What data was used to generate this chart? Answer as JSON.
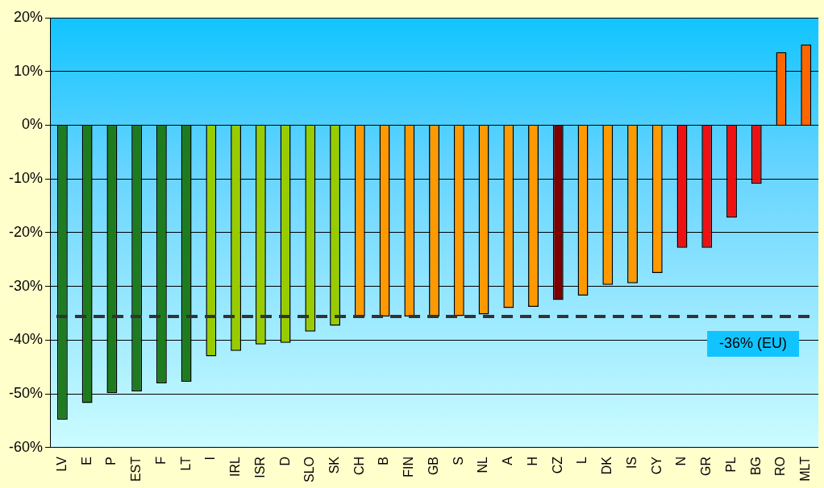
{
  "chart_data": {
    "type": "bar",
    "categories": [
      "LV",
      "E",
      "P",
      "EST",
      "F",
      "LT",
      "I",
      "IRL",
      "ISR",
      "D",
      "SLO",
      "SK",
      "CH",
      "B",
      "FIN",
      "GB",
      "S",
      "NL",
      "A",
      "H",
      "CZ",
      "L",
      "DK",
      "IS",
      "CY",
      "N",
      "GR",
      "PL",
      "BG",
      "RO",
      "MLT"
    ],
    "values": [
      -54.8,
      -51.7,
      -49.8,
      -49.5,
      -48,
      -47.7,
      -43,
      -42,
      -40.8,
      -40.5,
      -38.4,
      -37.3,
      -35.6,
      -35.6,
      -35.6,
      -35.6,
      -35.5,
      -35.2,
      -34,
      -33.8,
      -32.5,
      -31.7,
      -29.7,
      -29.4,
      -27.5,
      -22.8,
      -22.8,
      -17.2,
      -10.9,
      13.6,
      15
    ],
    "colors": [
      "#1e7b1e",
      "#1e7b1e",
      "#1e7b1e",
      "#1e7b1e",
      "#1e7b1e",
      "#1e7b1e",
      "#99cc00",
      "#99cc00",
      "#99cc00",
      "#99cc00",
      "#99cc00",
      "#99cc00",
      "#ff9900",
      "#ff9900",
      "#ff9900",
      "#ff9900",
      "#ff9900",
      "#ff9900",
      "#ff9900",
      "#ff9900",
      "#800000",
      "#ff9900",
      "#ff9900",
      "#ff9900",
      "#ff9900",
      "#ee1111",
      "#ee1111",
      "#ee1111",
      "#ee1111",
      "#ff6600",
      "#ff6600"
    ],
    "ylim": [
      -60,
      20
    ],
    "yticks": [
      {
        "value": -60,
        "label": "-60%"
      },
      {
        "value": -50,
        "label": "-50%"
      },
      {
        "value": -40,
        "label": "-40%"
      },
      {
        "value": -30,
        "label": "-30%"
      },
      {
        "value": -20,
        "label": "-20%"
      },
      {
        "value": -10,
        "label": "-10%"
      },
      {
        "value": 0,
        "label": "0%"
      },
      {
        "value": 10,
        "label": "10%"
      },
      {
        "value": 20,
        "label": "20%"
      }
    ],
    "grid": "y",
    "legend": false,
    "ref_lines": [
      {
        "axis": "y",
        "value": -35.6,
        "label": "-36% (EU)",
        "color": "#333333",
        "line_style": "dashed"
      }
    ]
  }
}
